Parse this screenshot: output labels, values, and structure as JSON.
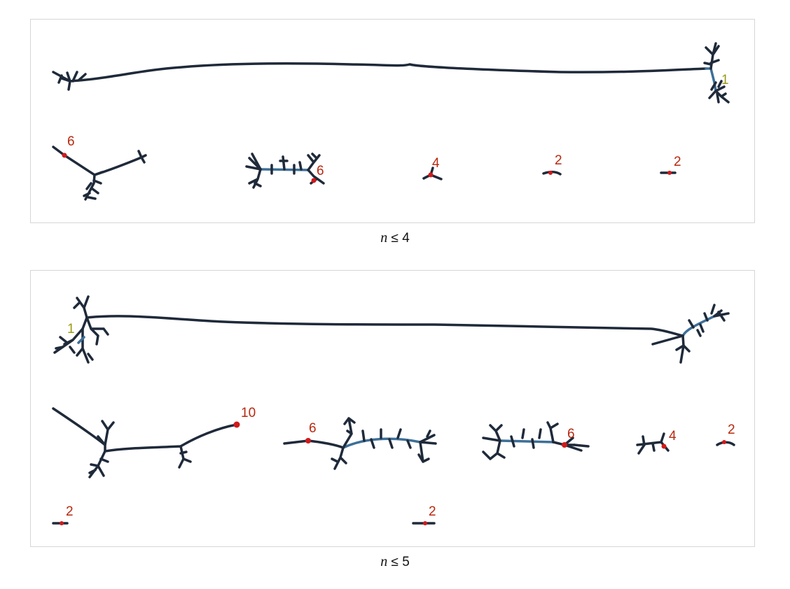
{
  "colors": {
    "graph": "#1f2a3a",
    "spine": "#3d6f98",
    "node": "#d11a1a",
    "label_red": "#b8280f",
    "label_olive": "#9a9a12",
    "border": "#d6d6d6"
  },
  "panels": [
    {
      "caption_var": "n",
      "caption_rest": " ≤ 4",
      "labels": [
        "1",
        "6",
        "6",
        "4",
        "2",
        "2"
      ]
    },
    {
      "caption_var": "n",
      "caption_rest": " ≤ 5",
      "labels": [
        "1",
        "10",
        "6",
        "6",
        "4",
        "2",
        "2",
        "2"
      ]
    }
  ]
}
